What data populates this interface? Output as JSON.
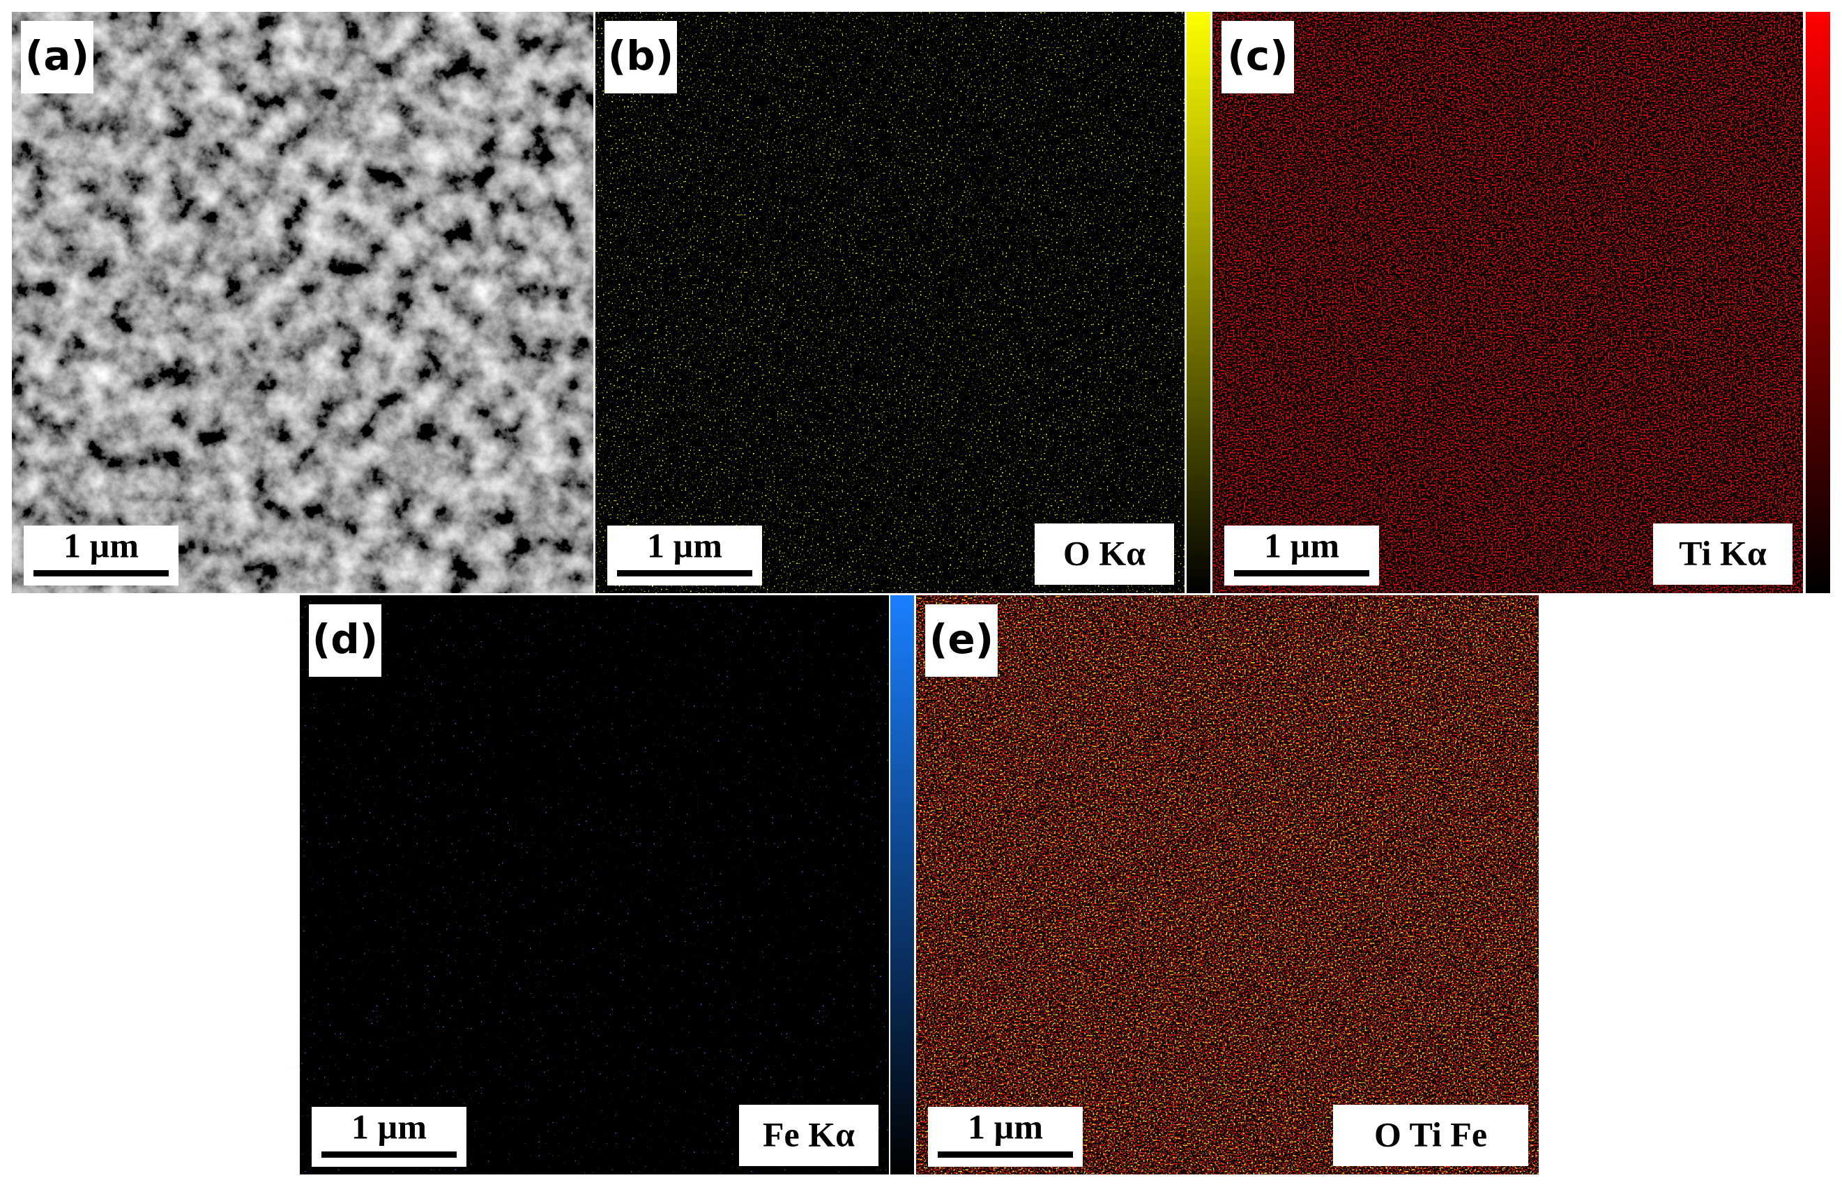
{
  "panels": [
    {
      "label": "(a)",
      "scale_bar": "1 µm"
    },
    {
      "label": "(b)",
      "scale_bar": "1 µm",
      "element": "O Kα"
    },
    {
      "label": "(c)",
      "scale_bar": "1 µm",
      "element": "Ti Kα"
    },
    {
      "label": "(d)",
      "scale_bar": "1 µm",
      "element": "Fe Kα"
    },
    {
      "label": "(e)",
      "scale_bar": "1 µm",
      "element": "O Ti Fe"
    }
  ]
}
